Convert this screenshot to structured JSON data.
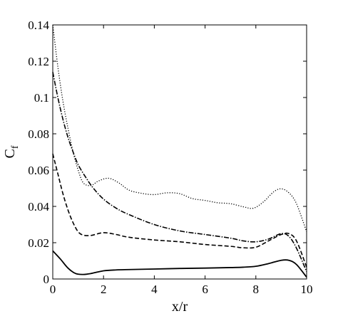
{
  "chart_data": {
    "type": "line",
    "title": "",
    "xlabel": "x/r",
    "ylabel": "C",
    "ylabel_subscript": "f",
    "xlim": [
      0,
      10
    ],
    "ylim": [
      0,
      0.14
    ],
    "x_ticks": [
      0,
      2,
      4,
      6,
      8,
      10
    ],
    "x_tick_labels": [
      "0",
      "2",
      "4",
      "6",
      "8",
      "10"
    ],
    "y_ticks": [
      0,
      0.02,
      0.04,
      0.06,
      0.08,
      0.1,
      0.12,
      0.14
    ],
    "y_tick_labels": [
      "0",
      "0.02",
      "0.04",
      "0.06",
      "0.08",
      "0.1",
      "0.12",
      "0.14"
    ],
    "grid": false,
    "legend": "none",
    "series": [
      {
        "style": "solid",
        "x": [
          0,
          0.3,
          0.6,
          0.9,
          1.2,
          1.5,
          2,
          2.5,
          3,
          4,
          5,
          6,
          7,
          7.5,
          8,
          8.5,
          9,
          9.3,
          9.6,
          10
        ],
        "y": [
          0.0155,
          0.011,
          0.006,
          0.003,
          0.0025,
          0.003,
          0.0045,
          0.005,
          0.0052,
          0.0055,
          0.0058,
          0.006,
          0.0063,
          0.0065,
          0.007,
          0.0085,
          0.0103,
          0.0103,
          0.008,
          0.001
        ]
      },
      {
        "style": "dashed",
        "x": [
          0,
          0.2,
          0.4,
          0.6,
          0.8,
          1,
          1.2,
          1.5,
          2,
          2.5,
          3,
          4,
          5,
          6,
          7,
          7.5,
          8,
          8.5,
          9,
          9.3,
          9.6,
          10
        ],
        "y": [
          0.069,
          0.058,
          0.047,
          0.038,
          0.031,
          0.026,
          0.0242,
          0.024,
          0.0255,
          0.0245,
          0.023,
          0.0215,
          0.0205,
          0.019,
          0.018,
          0.0172,
          0.0175,
          0.021,
          0.0245,
          0.025,
          0.021,
          0.0065
        ]
      },
      {
        "style": "dash-dot",
        "x": [
          0,
          0.2,
          0.4,
          0.6,
          0.8,
          1,
          1.3,
          1.6,
          2,
          2.5,
          3,
          4,
          5,
          6,
          7,
          7.5,
          8,
          8.5,
          9,
          9.3,
          9.6,
          10
        ],
        "y": [
          0.114,
          0.1,
          0.088,
          0.078,
          0.07,
          0.063,
          0.056,
          0.05,
          0.044,
          0.039,
          0.0355,
          0.03,
          0.0265,
          0.0245,
          0.0225,
          0.021,
          0.0205,
          0.022,
          0.025,
          0.0235,
          0.017,
          0.004
        ]
      },
      {
        "style": "dotted",
        "x": [
          0,
          0.2,
          0.4,
          0.6,
          0.8,
          1,
          1.2,
          1.5,
          1.8,
          2.2,
          2.6,
          3,
          3.5,
          4,
          4.5,
          5,
          5.5,
          6,
          6.5,
          7,
          7.5,
          7.9,
          8.3,
          8.7,
          9,
          9.3,
          9.6,
          10
        ],
        "y": [
          0.14,
          0.117,
          0.098,
          0.083,
          0.07,
          0.06,
          0.053,
          0.0515,
          0.054,
          0.0555,
          0.053,
          0.049,
          0.0472,
          0.0465,
          0.0475,
          0.047,
          0.0443,
          0.0433,
          0.042,
          0.0415,
          0.0398,
          0.039,
          0.0425,
          0.048,
          0.0497,
          0.0475,
          0.0415,
          0.026
        ]
      }
    ]
  }
}
